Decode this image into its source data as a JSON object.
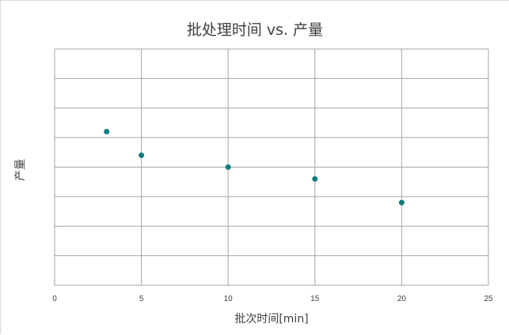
{
  "chart_data": {
    "type": "scatter",
    "title": "批处理时间 vs. 产量",
    "xlabel": "批次时间[min]",
    "ylabel": "产量",
    "xlim": [
      0,
      25
    ],
    "ylim": [
      0,
      8
    ],
    "x_ticks": [
      0,
      5,
      10,
      15,
      20,
      25
    ],
    "y_gridlines": 8,
    "grid": true,
    "marker_color": "#0f7b7b",
    "series": [
      {
        "points": [
          {
            "x": 3,
            "y": 5.2
          },
          {
            "x": 5,
            "y": 4.4
          },
          {
            "x": 10,
            "y": 4.0
          },
          {
            "x": 15,
            "y": 3.6
          },
          {
            "x": 20,
            "y": 2.8
          }
        ]
      }
    ]
  }
}
